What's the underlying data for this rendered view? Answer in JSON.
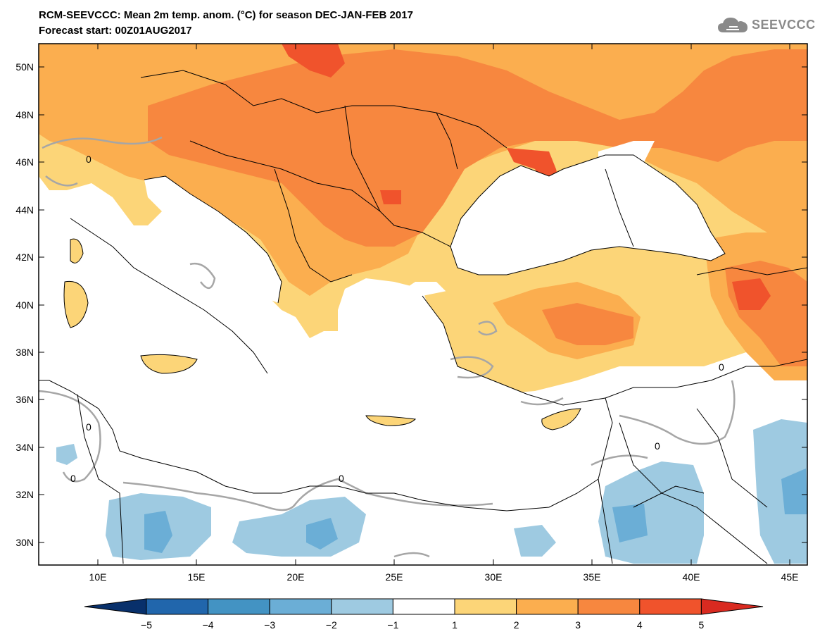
{
  "header": {
    "title": "RCM-SEEVCCC: Mean 2m temp. anom. (°C) for season DEC-JAN-FEB 2017",
    "subtitle": "Forecast start: 00Z01AUG2017",
    "logo_text": "SEEVCCC",
    "logo_icon": "cloud-icon"
  },
  "map": {
    "lon_labels": [
      "10E",
      "15E",
      "20E",
      "25E",
      "30E",
      "35E",
      "40E",
      "45E"
    ],
    "lat_labels": [
      "50N",
      "48N",
      "46N",
      "44N",
      "42N",
      "40N",
      "38N",
      "36N",
      "34N",
      "32N",
      "30N"
    ],
    "contour_label": "0",
    "colors": {
      "land_warm_1": "#fcd578",
      "land_warm_2": "#fbae4f",
      "land_warm_3": "#f7873f",
      "land_warm_4": "#f0532c",
      "land_warm_5": "#d92a20",
      "cool_1": "#9ecae1",
      "cool_2": "#6baed6",
      "contour": "#a6a6a6",
      "border": "#000000"
    }
  },
  "colorbar": {
    "ticks": [
      "−5",
      "−4",
      "−3",
      "−2",
      "−1",
      "1",
      "2",
      "3",
      "4",
      "5"
    ],
    "colors": [
      "#2166ac",
      "#4393c3",
      "#6baed6",
      "#9ecae1",
      "#ffffff",
      "#fcd578",
      "#fbae4f",
      "#f7873f",
      "#f0532c",
      "#d92a20"
    ]
  }
}
